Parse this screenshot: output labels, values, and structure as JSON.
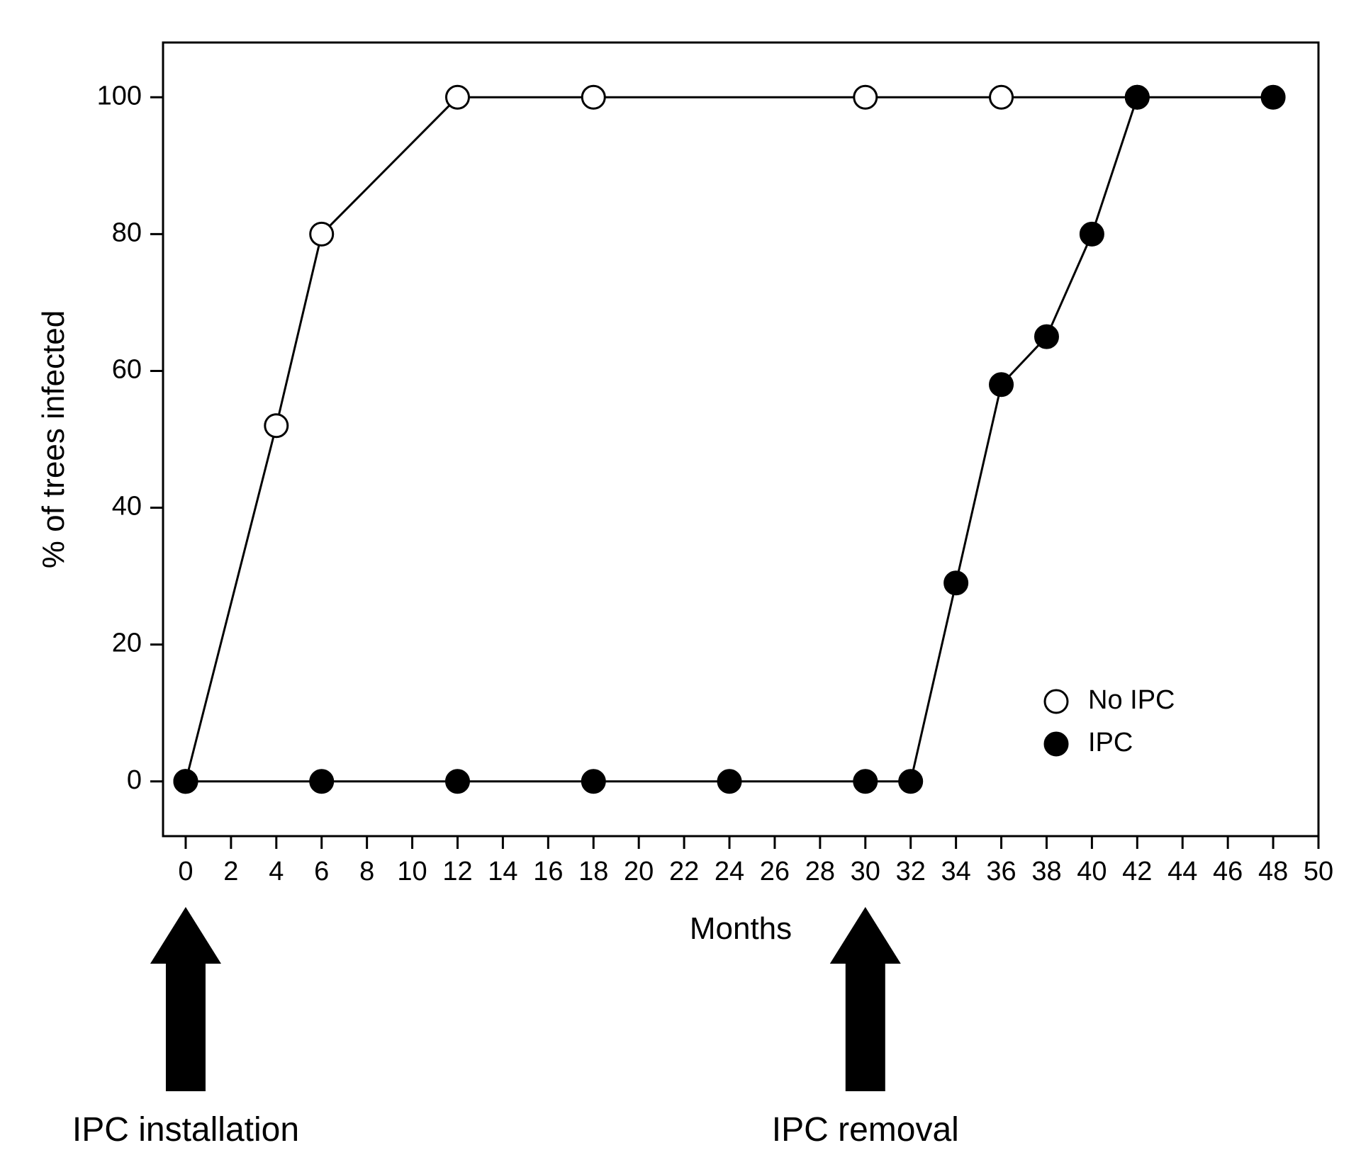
{
  "chart": {
    "type": "line",
    "background_color": "#ffffff",
    "axis_color": "#000000",
    "line_color": "#000000",
    "text_color": "#000000",
    "xlabel": "Months",
    "ylabel": "% of trees infected",
    "label_fontsize": 44,
    "tick_fontsize": 38,
    "legend_fontsize": 38,
    "axis_line_width": 3,
    "series_line_width": 3,
    "marker_radius": 16,
    "marker_stroke_width": 3,
    "xlim": [
      -1,
      50
    ],
    "ylim": [
      -8,
      108
    ],
    "xticks": [
      0,
      2,
      4,
      6,
      8,
      10,
      12,
      14,
      16,
      18,
      20,
      22,
      24,
      26,
      28,
      30,
      32,
      34,
      36,
      38,
      40,
      42,
      44,
      46,
      48,
      50
    ],
    "yticks": [
      0,
      20,
      40,
      60,
      80,
      100
    ],
    "legend": {
      "items": [
        {
          "label": "No IPC",
          "marker_fill": "#ffffff",
          "marker_stroke": "#000000"
        },
        {
          "label": "IPC",
          "marker_fill": "#000000",
          "marker_stroke": "#000000"
        }
      ]
    },
    "series": [
      {
        "name": "No IPC",
        "marker_fill": "#ffffff",
        "marker_stroke": "#000000",
        "points": [
          {
            "x": 0,
            "y": 0
          },
          {
            "x": 4,
            "y": 52
          },
          {
            "x": 6,
            "y": 80
          },
          {
            "x": 12,
            "y": 100
          },
          {
            "x": 18,
            "y": 100
          },
          {
            "x": 30,
            "y": 100
          },
          {
            "x": 36,
            "y": 100
          },
          {
            "x": 42,
            "y": 100
          }
        ]
      },
      {
        "name": "IPC",
        "marker_fill": "#000000",
        "marker_stroke": "#000000",
        "points": [
          {
            "x": 0,
            "y": 0
          },
          {
            "x": 6,
            "y": 0
          },
          {
            "x": 12,
            "y": 0
          },
          {
            "x": 18,
            "y": 0
          },
          {
            "x": 24,
            "y": 0
          },
          {
            "x": 30,
            "y": 0
          },
          {
            "x": 32,
            "y": 0
          },
          {
            "x": 34,
            "y": 29
          },
          {
            "x": 36,
            "y": 58
          },
          {
            "x": 38,
            "y": 65
          },
          {
            "x": 40,
            "y": 80
          },
          {
            "x": 42,
            "y": 100
          },
          {
            "x": 48,
            "y": 100
          }
        ]
      }
    ],
    "annotations": [
      {
        "label": "IPC installation",
        "x": 0
      },
      {
        "label": "IPC removal",
        "x": 30
      }
    ],
    "annotation_fontsize": 48,
    "arrow_color": "#000000"
  }
}
